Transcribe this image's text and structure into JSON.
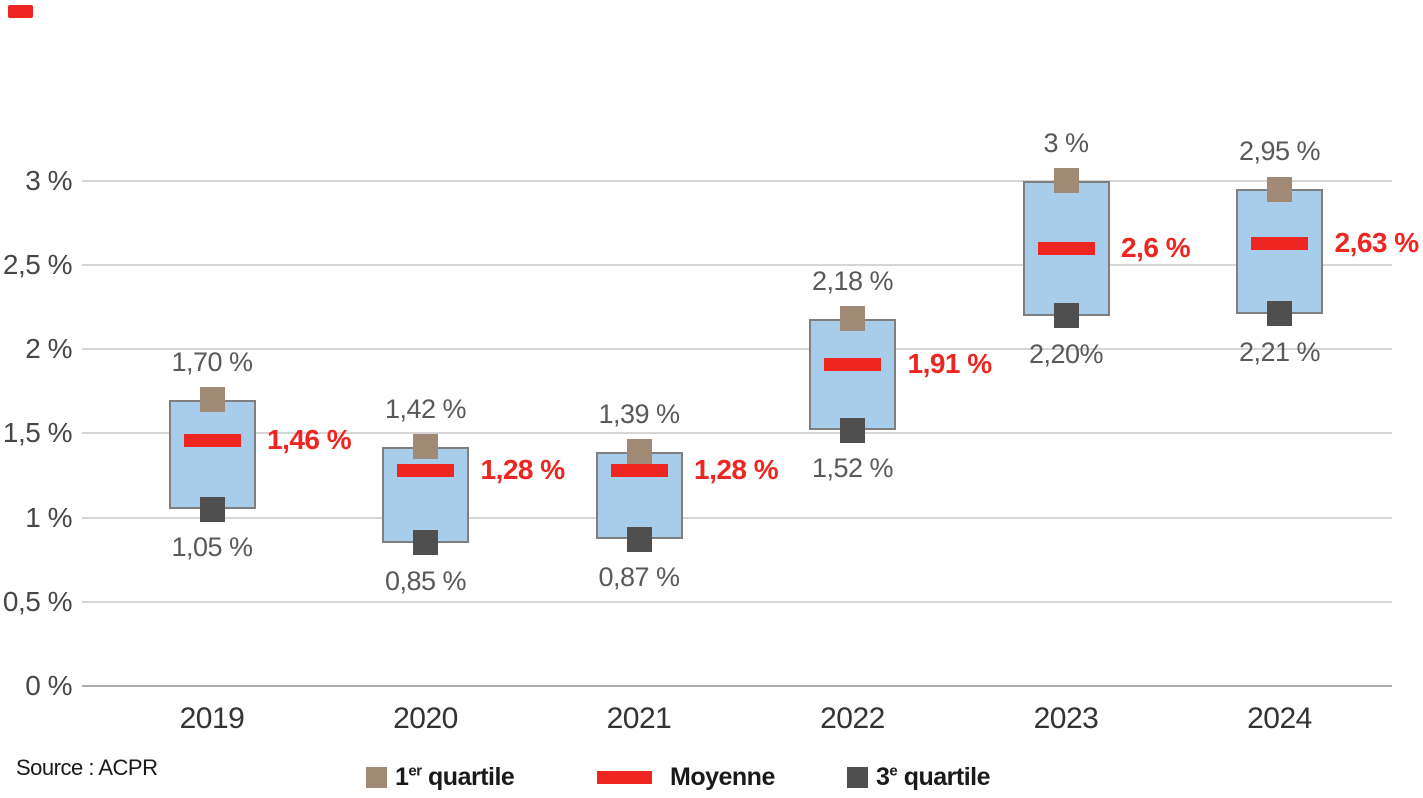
{
  "chart_data": {
    "type": "box-range",
    "categories": [
      "2019",
      "2020",
      "2021",
      "2022",
      "2023",
      "2024"
    ],
    "series": [
      {
        "name": "1er quartile",
        "role": "upper",
        "values": [
          1.7,
          1.42,
          1.39,
          2.18,
          3.0,
          2.95
        ],
        "labels": [
          "1,70 %",
          "1,42 %",
          "1,39 %",
          "2,18 %",
          "3 %",
          "2,95 %"
        ],
        "color": "#a18a75",
        "marker": "square"
      },
      {
        "name": "Moyenne",
        "role": "mean",
        "values": [
          1.46,
          1.28,
          1.28,
          1.91,
          2.6,
          2.63
        ],
        "labels": [
          "1,46 %",
          "1,28 %",
          "1,28 %",
          "1,91 %",
          "2,6 %",
          "2,63 %"
        ],
        "color": "#ee2520",
        "marker": "dash"
      },
      {
        "name": "3e quartile",
        "role": "lower",
        "values": [
          1.05,
          0.85,
          0.87,
          1.52,
          2.2,
          2.21
        ],
        "labels": [
          "1,05 %",
          "0,85 %",
          "0,87 %",
          "1,52 %",
          "2,20%",
          "2,21 %"
        ],
        "color": "#4f4f4f",
        "marker": "square"
      }
    ],
    "y_axis": {
      "ticks": [
        0,
        0.5,
        1,
        1.5,
        2,
        2.5,
        3
      ],
      "tick_labels": [
        "0 %",
        "0,5 %",
        "1 %",
        "1,5 %",
        "2 %",
        "2,5 %",
        "3 %"
      ],
      "ylim": [
        0,
        3.3
      ],
      "unit": "%"
    },
    "grid": true,
    "legend_position": "bottom",
    "colors": {
      "box_fill": "#a8cdea",
      "box_border": "#7f7f7f",
      "gridline": "#d6d6d6",
      "zero_line": "#adadad",
      "value_label": "#595959",
      "mean_label": "#ee2520",
      "brand_mark": "#ee2520"
    }
  },
  "legend": {
    "items": [
      {
        "num": "1",
        "sup": "er",
        "rest": " quartile"
      },
      {
        "label": "Moyenne"
      },
      {
        "num": "3",
        "sup": "e",
        "rest": " quartile"
      }
    ]
  },
  "source": {
    "text": "Source : ACPR"
  }
}
